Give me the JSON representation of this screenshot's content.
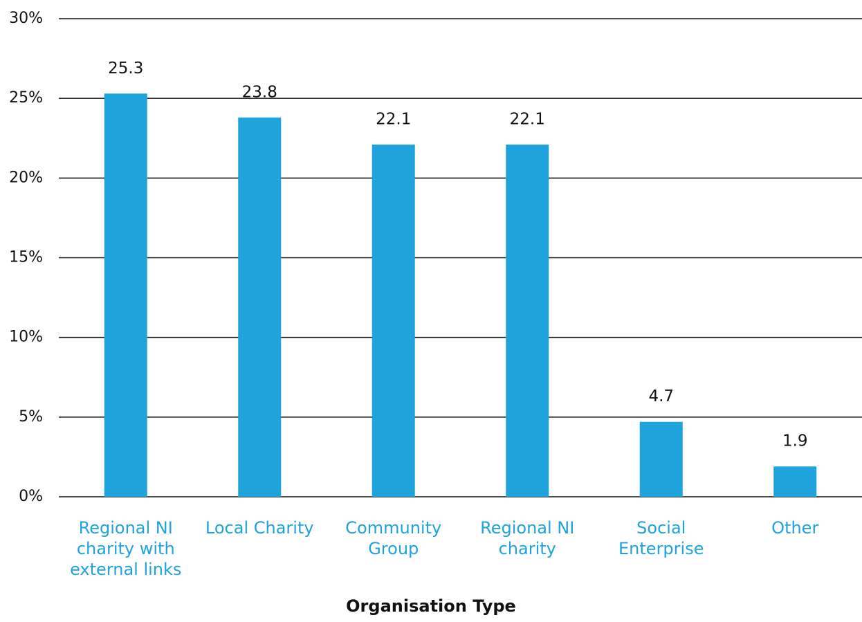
{
  "chart_data": {
    "type": "bar",
    "x_label": "Organisation Type",
    "categories": [
      "Regional NI charity with external links",
      "Local Charity",
      "Community Group",
      "Regional NI charity",
      "Social Enterprise",
      "Other"
    ],
    "values": [
      25.3,
      23.8,
      22.1,
      22.1,
      4.7,
      1.9
    ],
    "color": "#1fa3dc",
    "ylim": [
      0,
      30
    ],
    "yticks": [
      {
        "value": 0,
        "label": "0%"
      },
      {
        "value": 5,
        "label": "5%"
      },
      {
        "value": 10,
        "label": "10%"
      },
      {
        "value": 15,
        "label": "15%"
      },
      {
        "value": 20,
        "label": "20%"
      },
      {
        "value": 25,
        "label": "25%"
      },
      {
        "value": 30,
        "label": "30%"
      }
    ],
    "grid": true
  }
}
